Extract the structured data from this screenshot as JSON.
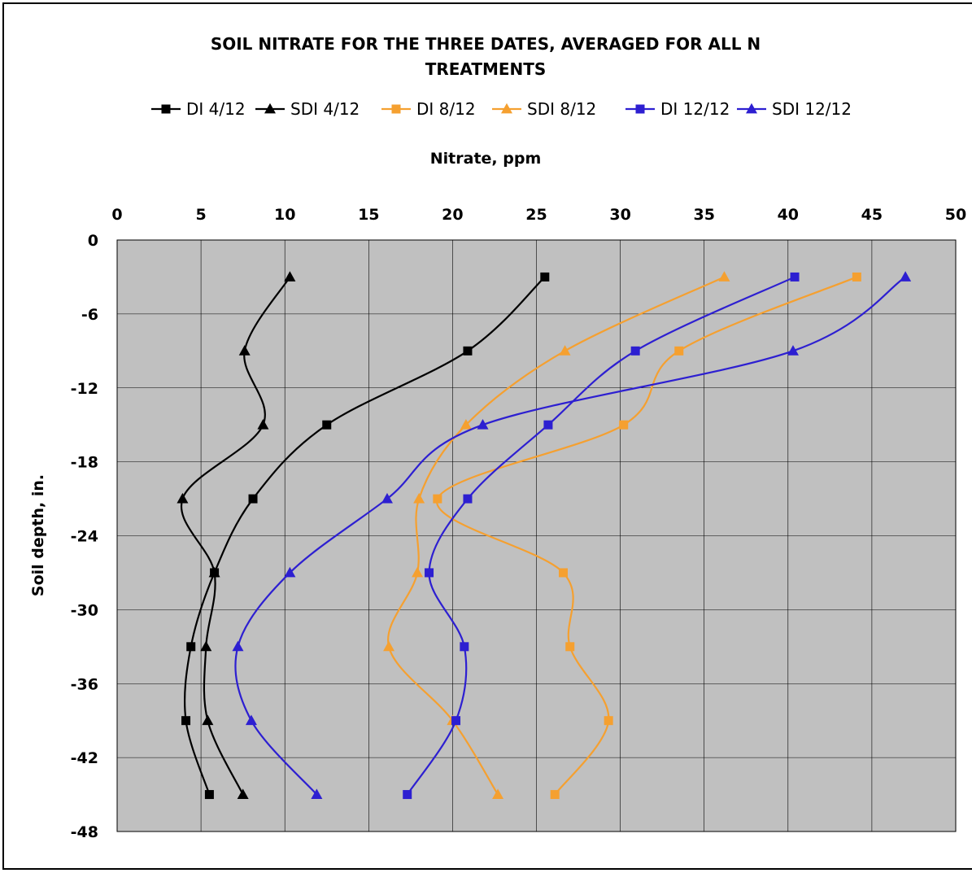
{
  "chart_data": {
    "type": "line",
    "title_lines": [
      "SOIL NITRATE FOR THE THREE DATES, AVERAGED FOR ALL N",
      "TREATMENTS"
    ],
    "xlabel": "Nitrate, ppm",
    "ylabel": "Soil depth, in.",
    "xlim": [
      0,
      50
    ],
    "ylim": [
      -48,
      0
    ],
    "x_ticks": [
      0,
      5,
      10,
      15,
      20,
      25,
      30,
      35,
      40,
      45,
      50
    ],
    "y_ticks": [
      0,
      -6,
      -12,
      -18,
      -24,
      -30,
      -36,
      -42,
      -48
    ],
    "x_axis_position": "top",
    "grid": true,
    "plot_background": "#c0c0c0",
    "legend_position": "top",
    "series": [
      {
        "name": "DI 4/12",
        "color": "#000000",
        "marker": "square",
        "x": [
          25.5,
          20.9,
          12.5,
          8.1,
          5.8,
          4.4,
          4.1,
          5.5
        ],
        "y": [
          -3,
          -9,
          -15,
          -21,
          -27,
          -33,
          -39,
          -45
        ]
      },
      {
        "name": "SDI 4/12",
        "color": "#000000",
        "marker": "triangle",
        "x": [
          10.3,
          7.6,
          8.7,
          3.9,
          5.8,
          5.3,
          5.4,
          7.5
        ],
        "y": [
          -3,
          -9,
          -15,
          -21,
          -27,
          -33,
          -39,
          -45
        ]
      },
      {
        "name": "DI 8/12",
        "color": "#f5a030",
        "marker": "square",
        "x": [
          44.1,
          33.5,
          30.2,
          19.1,
          26.6,
          27.0,
          29.3,
          26.1
        ],
        "y": [
          -3,
          -9,
          -15,
          -21,
          -27,
          -33,
          -39,
          -45
        ]
      },
      {
        "name": "SDI 8/12",
        "color": "#f5a030",
        "marker": "triangle",
        "x": [
          36.2,
          26.7,
          20.8,
          18.0,
          17.9,
          16.2,
          20.0,
          22.7
        ],
        "y": [
          -3,
          -9,
          -15,
          -21,
          -27,
          -33,
          -39,
          -45
        ]
      },
      {
        "name": "DI 12/12",
        "color": "#2d1fd1",
        "marker": "square",
        "x": [
          40.4,
          30.9,
          25.7,
          20.9,
          18.6,
          20.7,
          20.2,
          17.3
        ],
        "y": [
          -3,
          -9,
          -15,
          -21,
          -27,
          -33,
          -39,
          -45
        ]
      },
      {
        "name": "SDI 12/12",
        "color": "#2d1fd1",
        "marker": "triangle",
        "x": [
          47.0,
          40.3,
          21.8,
          16.1,
          10.3,
          7.2,
          8.0,
          11.9
        ],
        "y": [
          -3,
          -9,
          -15,
          -21,
          -27,
          -33,
          -39,
          -45
        ]
      }
    ]
  }
}
